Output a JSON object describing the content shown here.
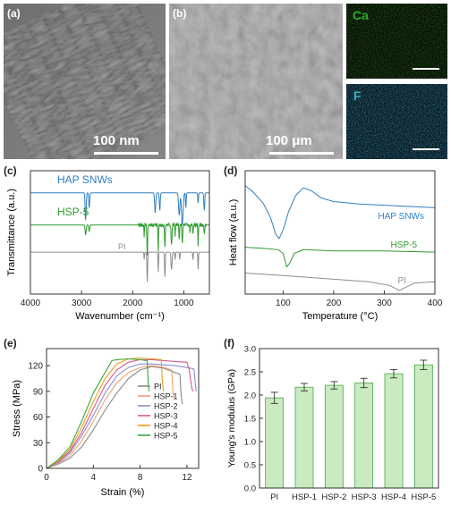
{
  "panels": {
    "a": {
      "label": "(a)",
      "scale": "100 nm"
    },
    "b": {
      "label": "(b)",
      "scale": "100 μm"
    },
    "ca_map": {
      "element": "Ca"
    },
    "f_map": {
      "element": "F"
    },
    "c": {
      "label": "(c)"
    },
    "d": {
      "label": "(d)"
    },
    "e": {
      "label": "(e)"
    },
    "f": {
      "label": "(f)"
    }
  },
  "colors": {
    "hap": "#2f7fc1",
    "hsp5": "#2f9a2f",
    "pi": "#8c8c8c",
    "ca_text": "#2faa2f",
    "f_text": "#2fb8c8",
    "bar_fill": "#c9ebbf",
    "bar_stroke": "#4aa84a"
  },
  "chart_data": [
    {
      "id": "c",
      "type": "line",
      "xlabel": "Wavenumber (cm⁻¹)",
      "ylabel": "Transmittance (a.u.)",
      "xlim": [
        4000,
        500
      ],
      "xticks": [
        "4000",
        "3000",
        "2000",
        "1000"
      ],
      "series": [
        {
          "name": "HAP SNWs",
          "color": "#2f7fc1",
          "baseline": 0.82,
          "bands": [
            [
              2920,
              0.22,
              14
            ],
            [
              2850,
              0.12,
              12
            ],
            [
              1560,
              0.16,
              15
            ],
            [
              1470,
              0.14,
              12
            ],
            [
              1090,
              0.18,
              18
            ],
            [
              1030,
              0.26,
              22
            ],
            [
              960,
              0.12,
              10
            ],
            [
              720,
              0.08,
              10
            ],
            [
              600,
              0.14,
              12
            ]
          ]
        },
        {
          "name": "HSP-5",
          "color": "#2f9a2f",
          "baseline": 0.56,
          "bands": [
            [
              2920,
              0.08,
              14
            ],
            [
              2850,
              0.05,
              12
            ],
            [
              1775,
              0.1,
              8
            ],
            [
              1715,
              0.26,
              10
            ],
            [
              1500,
              0.22,
              8
            ],
            [
              1370,
              0.18,
              10
            ],
            [
              1240,
              0.16,
              12
            ],
            [
              1170,
              0.08,
              8
            ],
            [
              1090,
              0.1,
              10
            ],
            [
              1030,
              0.14,
              12
            ],
            [
              880,
              0.06,
              8
            ],
            [
              820,
              0.08,
              8
            ],
            [
              720,
              0.16,
              8
            ],
            [
              600,
              0.08,
              10
            ]
          ],
          "noise": true
        },
        {
          "name": "PI",
          "color": "#8c8c8c",
          "baseline": 0.34,
          "bands": [
            [
              1775,
              0.06,
              8
            ],
            [
              1715,
              0.24,
              10
            ],
            [
              1500,
              0.16,
              8
            ],
            [
              1370,
              0.2,
              10
            ],
            [
              1240,
              0.14,
              14
            ],
            [
              1170,
              0.06,
              8
            ],
            [
              1080,
              0.06,
              8
            ],
            [
              820,
              0.06,
              8
            ],
            [
              720,
              0.14,
              8
            ]
          ]
        }
      ]
    },
    {
      "id": "d",
      "type": "line",
      "xlabel": "Temperature (°C)",
      "ylabel": "Heat flow (a.u.)",
      "xlim": [
        25,
        400
      ],
      "xticks": [
        100,
        200,
        300,
        400
      ],
      "series": [
        {
          "name": "HAP SNWs",
          "color": "#2f7fc1",
          "points": [
            [
              25,
              0.88
            ],
            [
              40,
              0.83
            ],
            [
              60,
              0.74
            ],
            [
              75,
              0.62
            ],
            [
              85,
              0.49
            ],
            [
              92,
              0.45
            ],
            [
              100,
              0.52
            ],
            [
              110,
              0.66
            ],
            [
              125,
              0.8
            ],
            [
              140,
              0.86
            ],
            [
              155,
              0.84
            ],
            [
              175,
              0.78
            ],
            [
              200,
              0.75
            ],
            [
              250,
              0.73
            ],
            [
              300,
              0.72
            ],
            [
              350,
              0.71
            ],
            [
              400,
              0.7
            ]
          ]
        },
        {
          "name": "HSP-5",
          "color": "#2f9a2f",
          "points": [
            [
              25,
              0.38
            ],
            [
              60,
              0.37
            ],
            [
              90,
              0.36
            ],
            [
              100,
              0.33
            ],
            [
              107,
              0.22
            ],
            [
              113,
              0.25
            ],
            [
              122,
              0.33
            ],
            [
              140,
              0.36
            ],
            [
              200,
              0.35
            ],
            [
              300,
              0.35
            ],
            [
              400,
              0.34
            ]
          ]
        },
        {
          "name": "PI",
          "color": "#8c8c8c",
          "points": [
            [
              25,
              0.17
            ],
            [
              100,
              0.15
            ],
            [
              200,
              0.12
            ],
            [
              270,
              0.1
            ],
            [
              310,
              0.07
            ],
            [
              330,
              0.03
            ],
            [
              345,
              0.06
            ],
            [
              360,
              0.09
            ],
            [
              400,
              0.1
            ]
          ]
        }
      ]
    },
    {
      "id": "e",
      "type": "line",
      "xlabel": "Strain (%)",
      "ylabel": "Stress (MPa)",
      "xlim": [
        0,
        13
      ],
      "ylim": [
        0,
        140
      ],
      "xticks": [
        0,
        4,
        8,
        12
      ],
      "yticks": [
        0,
        30,
        60,
        90,
        120
      ],
      "series": [
        {
          "name": "PI",
          "color": "#8a8a8a",
          "points": [
            [
              0,
              0
            ],
            [
              1,
              5
            ],
            [
              2,
              12
            ],
            [
              3,
              25
            ],
            [
              4,
              45
            ],
            [
              5,
              68
            ],
            [
              6,
              88
            ],
            [
              7,
              105
            ],
            [
              8,
              115
            ],
            [
              9,
              119
            ],
            [
              10,
              117
            ],
            [
              11,
              112
            ],
            [
              11.4,
              110
            ],
            [
              11.5,
              85
            ],
            [
              11.6,
              75
            ]
          ]
        },
        {
          "name": "HSP-1",
          "color": "#f0a070",
          "points": [
            [
              0,
              0
            ],
            [
              1,
              6
            ],
            [
              2,
              15
            ],
            [
              3,
              32
            ],
            [
              4,
              55
            ],
            [
              5,
              80
            ],
            [
              6,
              100
            ],
            [
              7,
              112
            ],
            [
              8,
              118
            ],
            [
              9,
              120
            ],
            [
              10,
              118
            ],
            [
              10.7,
              115
            ],
            [
              10.8,
              90
            ],
            [
              10.9,
              82
            ]
          ]
        },
        {
          "name": "HSP-2",
          "color": "#8c8cd8",
          "points": [
            [
              0,
              0
            ],
            [
              1,
              7
            ],
            [
              2,
              18
            ],
            [
              3,
              38
            ],
            [
              4,
              62
            ],
            [
              5,
              88
            ],
            [
              6,
              108
            ],
            [
              7,
              118
            ],
            [
              8,
              122
            ],
            [
              9,
              122
            ],
            [
              10,
              121
            ],
            [
              11,
              120
            ],
            [
              12,
              118
            ],
            [
              12.6,
              116
            ],
            [
              12.7,
              100
            ],
            [
              12.8,
              90
            ]
          ]
        },
        {
          "name": "HSP-3",
          "color": "#d85a8a",
          "points": [
            [
              0,
              0
            ],
            [
              1,
              8
            ],
            [
              2,
              20
            ],
            [
              3,
              42
            ],
            [
              4,
              70
            ],
            [
              5,
              97
            ],
            [
              6,
              115
            ],
            [
              7,
              124
            ],
            [
              8,
              127
            ],
            [
              9,
              127
            ],
            [
              10,
              126
            ],
            [
              11,
              125
            ],
            [
              12,
              124
            ],
            [
              12.2,
              115
            ],
            [
              12.4,
              95
            ],
            [
              12.5,
              90
            ]
          ]
        },
        {
          "name": "HSP-4",
          "color": "#e8a020",
          "points": [
            [
              0,
              0
            ],
            [
              1,
              9
            ],
            [
              2,
              22
            ],
            [
              3,
              48
            ],
            [
              4,
              78
            ],
            [
              5,
              105
            ],
            [
              6,
              122
            ],
            [
              7,
              128
            ],
            [
              8,
              129
            ],
            [
              9,
              128
            ],
            [
              9.8,
              127
            ],
            [
              9.9,
              100
            ],
            [
              10.0,
              90
            ]
          ]
        },
        {
          "name": "HSP-5",
          "color": "#3aa83a",
          "points": [
            [
              0,
              0
            ],
            [
              1,
              10
            ],
            [
              2,
              25
            ],
            [
              3,
              55
            ],
            [
              4,
              88
            ],
            [
              5,
              112
            ],
            [
              5.6,
              126
            ],
            [
              6,
              127
            ],
            [
              7,
              128
            ],
            [
              8,
              127
            ],
            [
              8.6,
              126
            ],
            [
              8.7,
              95
            ],
            [
              8.8,
              90
            ]
          ]
        }
      ]
    },
    {
      "id": "f",
      "type": "bar",
      "ylabel": "Young's modulus (GPa)",
      "ylim": [
        0,
        3.0
      ],
      "yticks": [
        "0.0",
        "0.5",
        "1.0",
        "1.5",
        "2.0",
        "2.5",
        "3.0"
      ],
      "categories": [
        "PI",
        "HSP-1",
        "HSP-2",
        "HSP-3",
        "HSP-4",
        "HSP-5"
      ],
      "values": [
        1.94,
        2.17,
        2.21,
        2.26,
        2.46,
        2.65
      ],
      "errors": [
        0.12,
        0.08,
        0.08,
        0.1,
        0.09,
        0.1
      ]
    }
  ]
}
